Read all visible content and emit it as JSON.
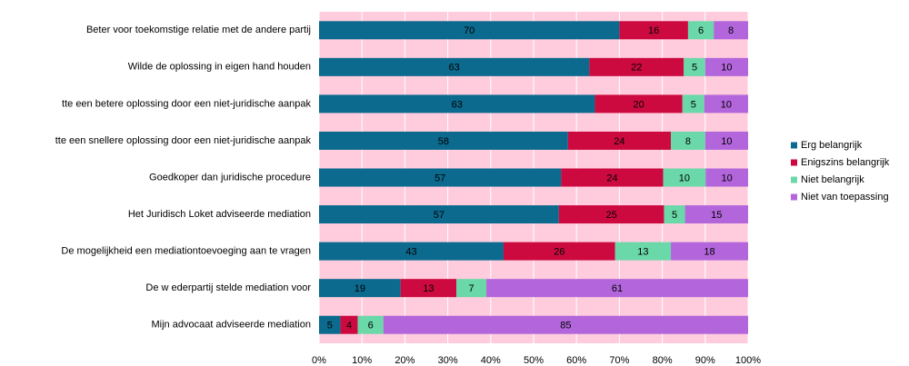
{
  "chart_data": {
    "type": "bar",
    "orientation": "horizontal",
    "stacking": "percent",
    "categories": [
      "Beter voor toekomstige relatie met de andere partij",
      "Wilde de oplossing in eigen hand houden",
      "tte een betere oplossing door een niet-juridische aanpak",
      "tte een snellere oplossing door een niet-juridische aanpak",
      "Goedkoper dan juridische procedure",
      "Het Juridisch Loket adviseerde mediation",
      "De mogelijkheid een mediationtoevoeging aan te vragen",
      "De w ederpartij stelde mediation voor",
      "Mijn advocaat adviseerde mediation"
    ],
    "series": [
      {
        "name": "Erg belangrijk",
        "color": "#0b6a8e",
        "values": [
          70,
          63,
          63,
          58,
          57,
          57,
          43,
          19,
          5
        ]
      },
      {
        "name": "Enigszins belangrijk",
        "color": "#cc0a40",
        "values": [
          16,
          22,
          20,
          24,
          24,
          25,
          26,
          13,
          4
        ]
      },
      {
        "name": "Niet belangrijk",
        "color": "#6ad8a8",
        "values": [
          6,
          5,
          5,
          8,
          10,
          5,
          13,
          7,
          6
        ]
      },
      {
        "name": "Niet van toepassing",
        "color": "#b366dc",
        "values": [
          8,
          10,
          10,
          10,
          10,
          15,
          18,
          61,
          85
        ]
      }
    ],
    "xlim": [
      0,
      100
    ],
    "xticks": [
      {
        "value": 0,
        "label": "0%"
      },
      {
        "value": 10,
        "label": "10%"
      },
      {
        "value": 20,
        "label": "20%"
      },
      {
        "value": 30,
        "label": "30%"
      },
      {
        "value": 40,
        "label": "40%"
      },
      {
        "value": 50,
        "label": "50%"
      },
      {
        "value": 60,
        "label": "60%"
      },
      {
        "value": 70,
        "label": "70%"
      },
      {
        "value": 80,
        "label": "80%"
      },
      {
        "value": 90,
        "label": "90%"
      },
      {
        "value": 100,
        "label": "100%"
      }
    ],
    "grid": true,
    "legend": "right",
    "background": "#ffccdd"
  }
}
